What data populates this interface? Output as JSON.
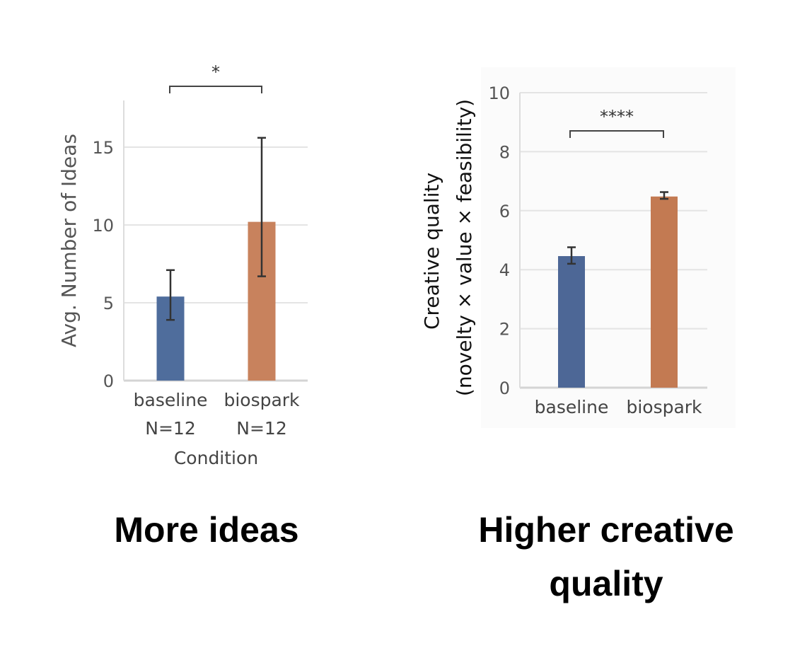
{
  "chart_data": [
    {
      "type": "bar",
      "categories": [
        "baseline",
        "biospark"
      ],
      "category_sublabels": [
        "N=12",
        "N=12"
      ],
      "values": [
        5.4,
        10.2
      ],
      "error_low": [
        3.9,
        6.7
      ],
      "error_high": [
        7.1,
        15.6
      ],
      "colors": [
        "#4f6d9c",
        "#c8825d"
      ],
      "xlabel": "Condition",
      "ylabel": "Avg. Number of Ideas",
      "ylim": [
        0,
        18
      ],
      "yticks": [
        0,
        5,
        10,
        15
      ],
      "grid": true,
      "significance": "*",
      "caption": "More ideas"
    },
    {
      "type": "bar",
      "categories": [
        "baseline",
        "biospark"
      ],
      "values": [
        4.46,
        6.48
      ],
      "error_low": [
        4.2,
        6.4
      ],
      "error_high": [
        4.76,
        6.63
      ],
      "colors": [
        "#4d6796",
        "#c37a52"
      ],
      "xlabel": "",
      "ylabel": "Creative quality",
      "ylabel_line2": "(novelty × value × feasibility)",
      "ylim": [
        0,
        10
      ],
      "yticks": [
        0,
        2,
        4,
        6,
        8,
        10
      ],
      "grid": true,
      "significance": "****",
      "caption_line1": "Higher creative",
      "caption_line2": "quality"
    }
  ]
}
